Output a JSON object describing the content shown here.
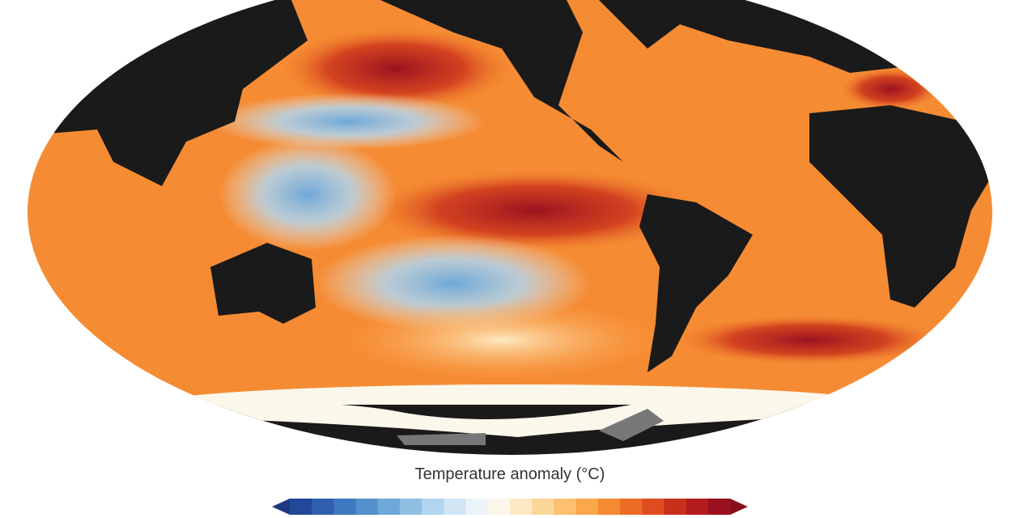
{
  "legend": {
    "title": "Temperature anomaly (°C)",
    "colors": [
      "#23489a",
      "#2f5fae",
      "#3d78c0",
      "#5390cc",
      "#6fa8d8",
      "#8fc0e4",
      "#b2d6ef",
      "#d2e6f5",
      "#eaf3f8",
      "#fbf7ea",
      "#fde9c2",
      "#fdd79a",
      "#fcc06f",
      "#fba74b",
      "#f58b33",
      "#ec6c26",
      "#de4c1f",
      "#c9301c",
      "#b41d1f",
      "#9a1220"
    ],
    "low_color": "#1d3a80",
    "high_color": "#8a0f1c"
  }
}
